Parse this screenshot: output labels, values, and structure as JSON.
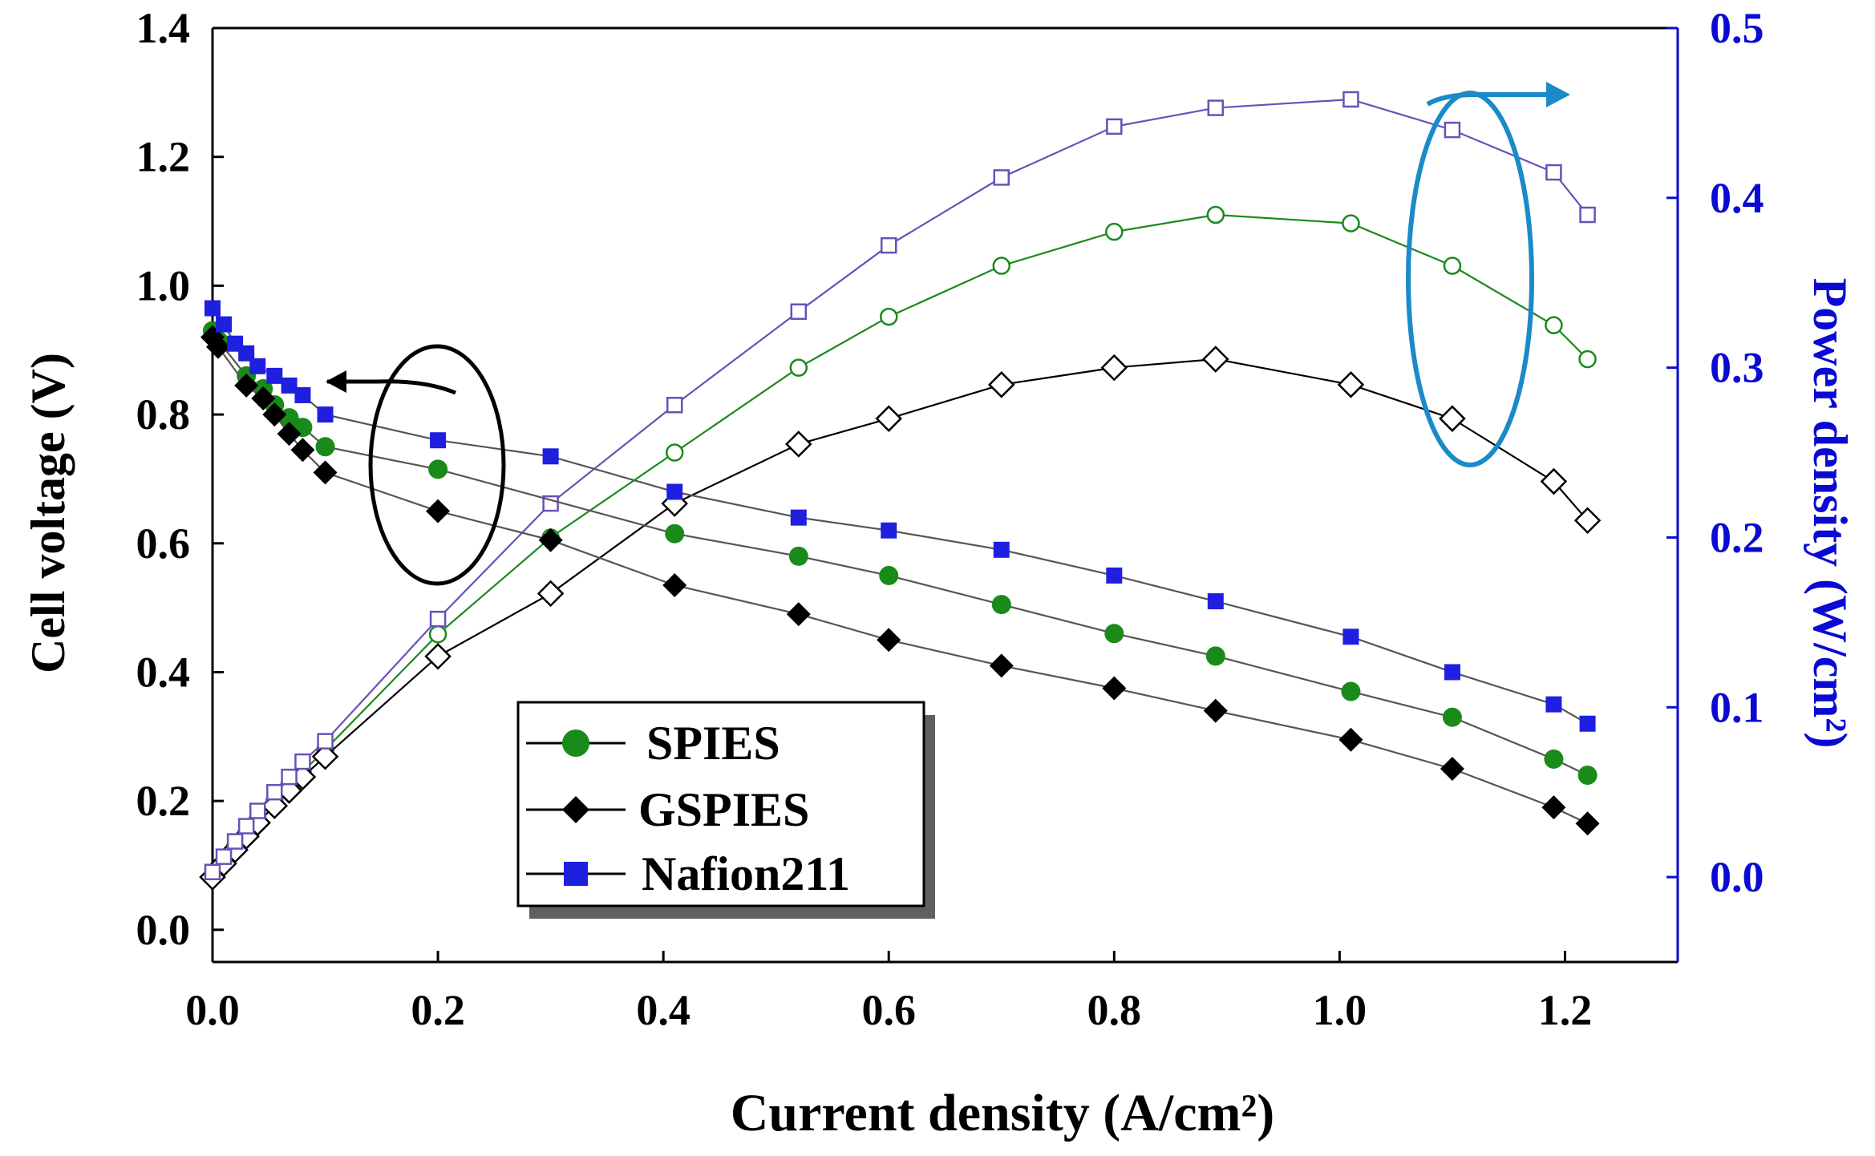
{
  "chart_data": {
    "type": "line",
    "xlabel": "Current density (A/cm²)",
    "ylabel_left": "Cell voltage (V)",
    "ylabel_right": "Power density (W/cm²)",
    "xlim": [
      0,
      1.3
    ],
    "ylim_left": [
      -0.05,
      1.4
    ],
    "ylim_right": [
      -0.05,
      0.5
    ],
    "x_ticks": [
      "0.0",
      "0.2",
      "0.4",
      "0.6",
      "0.8",
      "1.0",
      "1.2"
    ],
    "y_left_ticks": [
      "0.0",
      "0.2",
      "0.4",
      "0.6",
      "0.8",
      "1.0",
      "1.2",
      "1.4"
    ],
    "y_right_ticks": [
      "0.0",
      "0.1",
      "0.2",
      "0.3",
      "0.4",
      "0.5"
    ],
    "colors": {
      "left_axis": "#000000",
      "right_axis": "#0a0ad2",
      "spies": "#1a8a1a",
      "gspies": "#000000",
      "nafion": "#1f1fe0",
      "nafion_power_line": "#6a50b8",
      "annotation_left": "#000000",
      "annotation_right": "#1a8ac8"
    },
    "annotations": [
      {
        "name": "voltage-curves",
        "axis": "left",
        "arrow": "left"
      },
      {
        "name": "power-curves",
        "axis": "right",
        "arrow": "right"
      }
    ],
    "legend": {
      "position": "center-bottom",
      "entries": [
        {
          "label": "SPIES",
          "marker": "circle"
        },
        {
          "label": "GSPIES",
          "marker": "diamond"
        },
        {
          "label": "Nafion211",
          "marker": "square"
        }
      ]
    },
    "voltage_series": [
      {
        "name": "SPIES",
        "x": [
          0.0,
          0.005,
          0.03,
          0.045,
          0.055,
          0.068,
          0.08,
          0.1,
          0.2,
          0.41,
          0.52,
          0.6,
          0.7,
          0.8,
          0.89,
          1.01,
          1.1,
          1.19,
          1.22
        ],
        "y": [
          0.93,
          0.915,
          0.86,
          0.84,
          0.815,
          0.795,
          0.78,
          0.75,
          0.715,
          0.615,
          0.58,
          0.55,
          0.505,
          0.46,
          0.425,
          0.37,
          0.33,
          0.265,
          0.24
        ]
      },
      {
        "name": "GSPIES",
        "x": [
          0.0,
          0.005,
          0.03,
          0.045,
          0.055,
          0.068,
          0.08,
          0.1,
          0.2,
          0.3,
          0.41,
          0.52,
          0.6,
          0.7,
          0.8,
          0.89,
          1.01,
          1.1,
          1.19,
          1.22
        ],
        "y": [
          0.92,
          0.905,
          0.845,
          0.825,
          0.8,
          0.77,
          0.745,
          0.71,
          0.65,
          0.605,
          0.535,
          0.49,
          0.45,
          0.41,
          0.375,
          0.34,
          0.295,
          0.25,
          0.19,
          0.165
        ]
      },
      {
        "name": "Nafion211",
        "x": [
          0.0,
          0.01,
          0.02,
          0.03,
          0.04,
          0.055,
          0.068,
          0.08,
          0.1,
          0.2,
          0.3,
          0.41,
          0.52,
          0.6,
          0.7,
          0.8,
          0.89,
          1.01,
          1.1,
          1.19,
          1.22
        ],
        "y": [
          0.965,
          0.94,
          0.91,
          0.895,
          0.875,
          0.86,
          0.845,
          0.83,
          0.8,
          0.76,
          0.735,
          0.68,
          0.64,
          0.62,
          0.59,
          0.55,
          0.51,
          0.455,
          0.4,
          0.35,
          0.32
        ]
      }
    ],
    "power_series": [
      {
        "name": "SPIES",
        "x": [
          0.0,
          0.01,
          0.02,
          0.03,
          0.04,
          0.055,
          0.068,
          0.08,
          0.1,
          0.2,
          0.3,
          0.41,
          0.52,
          0.6,
          0.7,
          0.8,
          0.89,
          1.01,
          1.1,
          1.19,
          1.22
        ],
        "y": [
          0.0,
          0.009,
          0.018,
          0.026,
          0.034,
          0.045,
          0.054,
          0.062,
          0.075,
          0.143,
          0.2,
          0.25,
          0.3,
          0.33,
          0.36,
          0.38,
          0.39,
          0.385,
          0.36,
          0.325,
          0.305
        ]
      },
      {
        "name": "GSPIES",
        "x": [
          0.0,
          0.01,
          0.02,
          0.03,
          0.04,
          0.055,
          0.068,
          0.08,
          0.1,
          0.2,
          0.3,
          0.41,
          0.52,
          0.6,
          0.7,
          0.8,
          0.89,
          1.01,
          1.1,
          1.19,
          1.22
        ],
        "y": [
          0.0,
          0.008,
          0.016,
          0.024,
          0.032,
          0.042,
          0.051,
          0.059,
          0.071,
          0.13,
          0.167,
          0.22,
          0.255,
          0.27,
          0.29,
          0.3,
          0.305,
          0.29,
          0.27,
          0.233,
          0.21
        ]
      },
      {
        "name": "Nafion211",
        "x": [
          0.0,
          0.01,
          0.02,
          0.03,
          0.04,
          0.055,
          0.068,
          0.08,
          0.1,
          0.2,
          0.3,
          0.41,
          0.52,
          0.6,
          0.7,
          0.8,
          0.89,
          1.01,
          1.1,
          1.19,
          1.22
        ],
        "y": [
          0.003,
          0.012,
          0.021,
          0.03,
          0.039,
          0.05,
          0.059,
          0.068,
          0.08,
          0.152,
          0.22,
          0.278,
          0.333,
          0.372,
          0.412,
          0.442,
          0.453,
          0.458,
          0.44,
          0.415,
          0.39
        ]
      }
    ]
  }
}
